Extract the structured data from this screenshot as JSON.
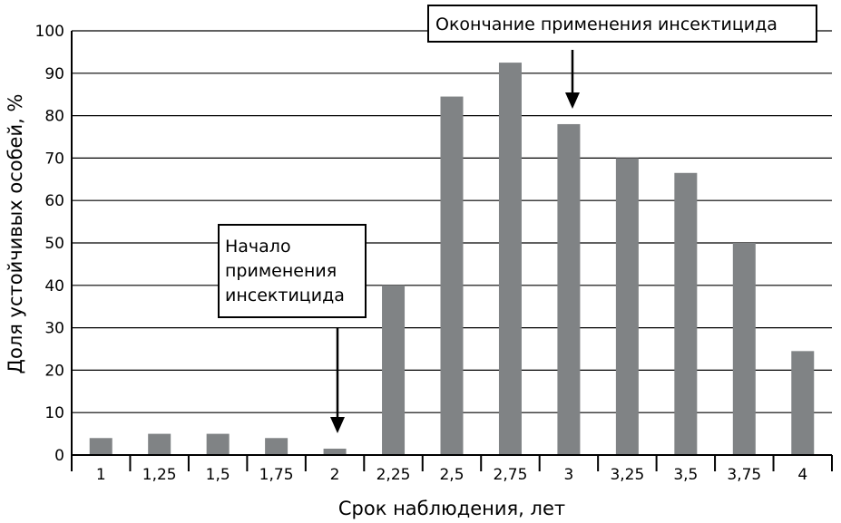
{
  "chart_data": {
    "type": "bar",
    "title": "",
    "xlabel": "Срок наблюдения, лет",
    "ylabel": "Доля устойчивых особей, %",
    "categories": [
      "1",
      "1,25",
      "1,5",
      "1,75",
      "2",
      "2,25",
      "2,5",
      "2,75",
      "3",
      "3,25",
      "3,5",
      "3,75",
      "4"
    ],
    "values": [
      4,
      5,
      5,
      4,
      1.5,
      40,
      84.5,
      92.5,
      78,
      70,
      66.5,
      50,
      24.5
    ],
    "ylim": [
      0,
      100
    ],
    "yticks": [
      0,
      10,
      20,
      30,
      40,
      50,
      60,
      70,
      80,
      90,
      100
    ],
    "grid": true,
    "bar_color": "#808385",
    "annotations": [
      {
        "lines": [
          "Начало",
          "применения",
          "инсектицида"
        ],
        "target_category": "2"
      },
      {
        "lines": [
          "Окончание применения инсектицида"
        ],
        "target_category": "3"
      }
    ]
  }
}
